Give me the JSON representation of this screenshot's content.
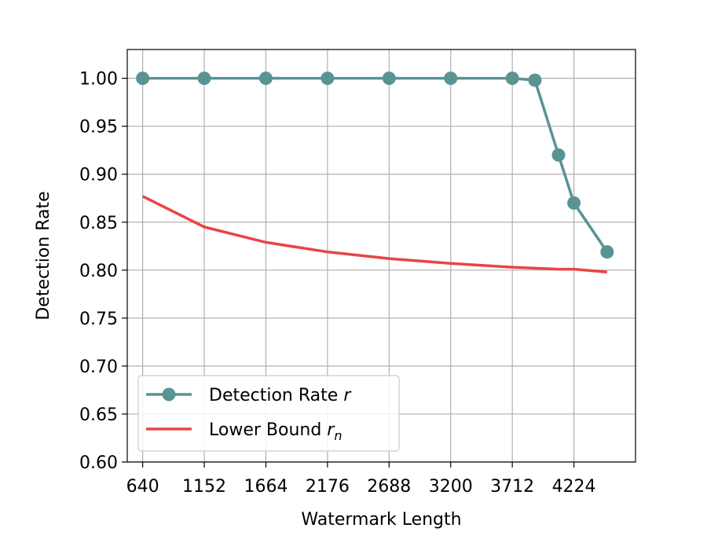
{
  "chart_data": {
    "type": "line",
    "xlabel": "Watermark Length",
    "ylabel": "Detection Rate",
    "xlim": [
      512,
      4736
    ],
    "ylim": [
      0.6,
      1.03
    ],
    "x_ticks": [
      640,
      1152,
      1664,
      2176,
      2688,
      3200,
      3712,
      4224
    ],
    "x_tick_labels": [
      "640",
      "1152",
      "1664",
      "2176",
      "2688",
      "3200",
      "3712",
      "4224"
    ],
    "y_ticks": [
      0.6,
      0.65,
      0.7,
      0.75,
      0.8,
      0.85,
      0.9,
      0.95,
      1.0
    ],
    "y_tick_labels": [
      "0.60",
      "0.65",
      "0.70",
      "0.75",
      "0.80",
      "0.85",
      "0.90",
      "0.95",
      "1.00"
    ],
    "grid": true,
    "legend_position": "lower-left",
    "series": [
      {
        "name": "Detection Rate r",
        "name_main": "Detection Rate ",
        "name_italic": "r",
        "name_sub": "",
        "color": "#5a9393",
        "marker": "circle",
        "x": [
          640,
          1152,
          1664,
          2176,
          2688,
          3200,
          3712,
          3900,
          4096,
          4224,
          4500
        ],
        "y": [
          1.0,
          1.0,
          1.0,
          1.0,
          1.0,
          1.0,
          1.0,
          0.998,
          0.92,
          0.87,
          0.819
        ]
      },
      {
        "name": "Lower Bound r_n",
        "name_main": "Lower Bound ",
        "name_italic": "r",
        "name_sub": "n",
        "color": "#e84545",
        "marker": "none",
        "x": [
          640,
          1152,
          1664,
          2176,
          2688,
          3200,
          3712,
          4096,
          4224,
          4500
        ],
        "y": [
          0.877,
          0.845,
          0.829,
          0.819,
          0.812,
          0.807,
          0.803,
          0.801,
          0.801,
          0.798
        ]
      }
    ]
  }
}
